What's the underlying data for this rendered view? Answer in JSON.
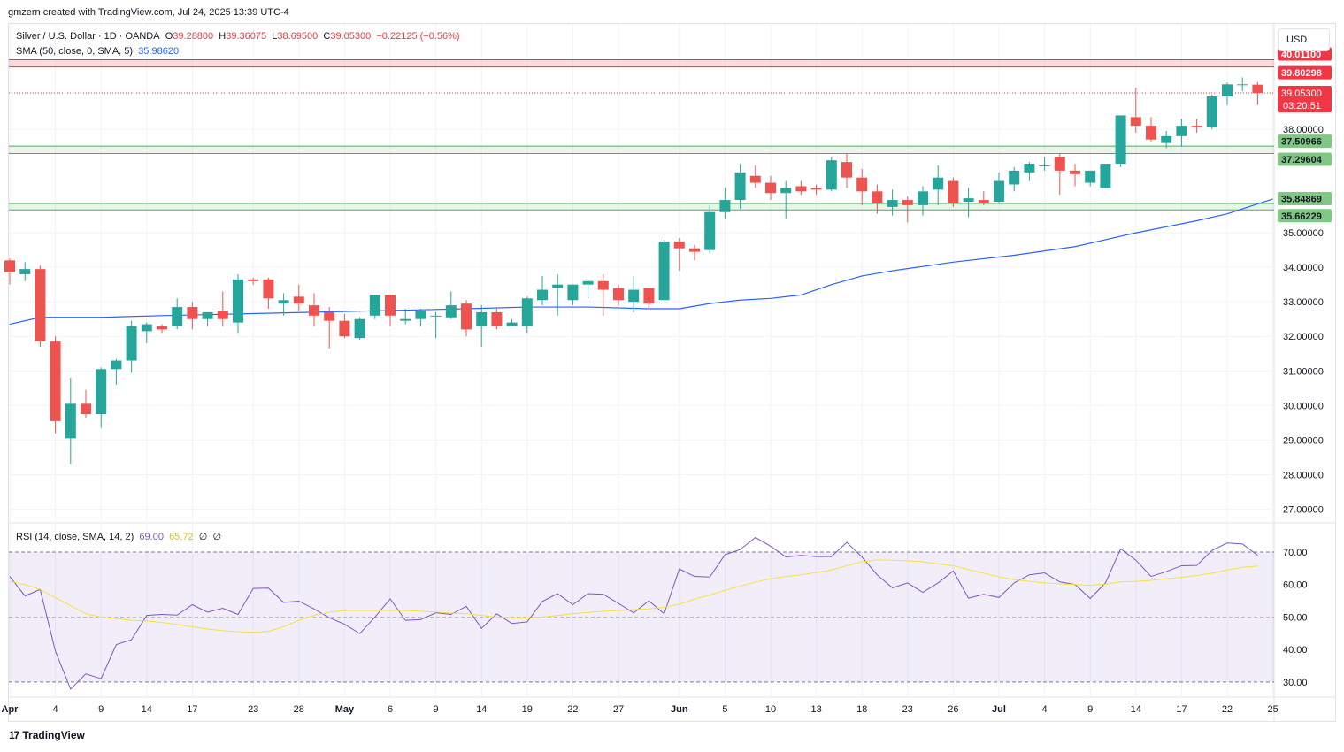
{
  "header": {
    "credit": "gmzern created with TradingView.com, Jul 24, 2025 13:39 UTC-4"
  },
  "legend": {
    "symbol": "Silver / U.S. Dollar · 1D · OANDA",
    "o_label": "O",
    "o_value": "39.28800",
    "h_label": "H",
    "h_value": "39.36075",
    "l_label": "L",
    "l_value": "38.69500",
    "c_label": "C",
    "c_value": "39.05300",
    "change": "−0.22125 (−0.56%)",
    "sma_label": "SMA (50, close, 0, SMA, 5)",
    "sma_value": "35.98620",
    "rsi_label": "RSI (14, close, SMA, 14, 2)",
    "rsi_value": "69.00",
    "rsi_ma_value": "65.72",
    "rsi_extra1": "∅",
    "rsi_extra2": "∅"
  },
  "currency_button": "USD",
  "footer": {
    "logo_mark": "17",
    "logo_text": "TradingView"
  },
  "colors": {
    "up": "#26a69a",
    "down": "#ef5350",
    "sma": "#2962ff",
    "rsi": "#7e57c2",
    "rsi_ma": "#f5e13c",
    "zone_red": "#f23645",
    "zone_green": "#4caf50"
  },
  "chart_data": [
    {
      "type": "candlestick",
      "title": "Silver / U.S. Dollar · 1D · OANDA",
      "ylim": [
        26.6,
        41.05
      ],
      "y_ticks": [
        "27.00000",
        "28.00000",
        "29.00000",
        "30.00000",
        "31.00000",
        "32.00000",
        "33.00000",
        "34.00000",
        "35.00000",
        "38.00000"
      ],
      "x_ticks": [
        {
          "label": "Apr",
          "i": 0
        },
        {
          "label": "4",
          "i": 3
        },
        {
          "label": "9",
          "i": 6
        },
        {
          "label": "14",
          "i": 9
        },
        {
          "label": "17",
          "i": 12
        },
        {
          "label": "23",
          "i": 16
        },
        {
          "label": "28",
          "i": 19
        },
        {
          "label": "May",
          "i": 22
        },
        {
          "label": "6",
          "i": 25
        },
        {
          "label": "9",
          "i": 28
        },
        {
          "label": "14",
          "i": 31
        },
        {
          "label": "19",
          "i": 34
        },
        {
          "label": "22",
          "i": 37
        },
        {
          "label": "27",
          "i": 40
        },
        {
          "label": "Jun",
          "i": 44
        },
        {
          "label": "5",
          "i": 47
        },
        {
          "label": "10",
          "i": 50
        },
        {
          "label": "13",
          "i": 53
        },
        {
          "label": "18",
          "i": 56
        },
        {
          "label": "23",
          "i": 59
        },
        {
          "label": "26",
          "i": 62
        },
        {
          "label": "Jul",
          "i": 65
        },
        {
          "label": "4",
          "i": 68
        },
        {
          "label": "9",
          "i": 71
        },
        {
          "label": "14",
          "i": 74
        },
        {
          "label": "17",
          "i": 77
        },
        {
          "label": "22",
          "i": 80
        },
        {
          "label": "25",
          "i": 83
        }
      ],
      "last_price_label": "39.05300",
      "countdown_label": "03:20:51",
      "zones": [
        {
          "color": "red",
          "top": 40.011,
          "bottom": 39.80298,
          "labels": [
            "40.01100",
            "39.80298"
          ]
        },
        {
          "color": "green",
          "top": 37.50966,
          "bottom": 37.29604,
          "labels": [
            "37.50966",
            "37.29604"
          ]
        },
        {
          "color": "green",
          "top": 35.84869,
          "bottom": 35.66229,
          "labels": [
            "35.84869",
            "35.66229"
          ]
        }
      ],
      "candles": [
        [
          34.2,
          34.25,
          33.5,
          33.85
        ],
        [
          33.8,
          34.15,
          33.6,
          33.95
        ],
        [
          33.95,
          34.05,
          31.7,
          31.85
        ],
        [
          31.85,
          32.0,
          29.2,
          29.55
        ],
        [
          29.05,
          30.8,
          28.3,
          30.05
        ],
        [
          30.05,
          30.45,
          29.65,
          29.75
        ],
        [
          29.75,
          31.1,
          29.35,
          31.05
        ],
        [
          31.05,
          31.35,
          30.6,
          31.3
        ],
        [
          31.3,
          32.45,
          30.95,
          32.3
        ],
        [
          32.15,
          32.4,
          31.8,
          32.35
        ],
        [
          32.3,
          32.35,
          32.1,
          32.2
        ],
        [
          32.3,
          33.1,
          32.2,
          32.85
        ],
        [
          32.85,
          33.0,
          32.2,
          32.5
        ],
        [
          32.5,
          32.7,
          32.3,
          32.7
        ],
        [
          32.75,
          33.3,
          32.3,
          32.5
        ],
        [
          32.4,
          33.8,
          32.1,
          33.65
        ],
        [
          33.65,
          33.7,
          33.5,
          33.6
        ],
        [
          33.65,
          33.7,
          32.8,
          33.1
        ],
        [
          32.95,
          33.25,
          32.6,
          33.05
        ],
        [
          33.15,
          33.5,
          32.75,
          32.95
        ],
        [
          32.9,
          33.25,
          32.3,
          32.6
        ],
        [
          32.7,
          32.85,
          31.65,
          32.45
        ],
        [
          32.45,
          32.65,
          31.95,
          32.0
        ],
        [
          31.95,
          32.55,
          31.9,
          32.5
        ],
        [
          32.6,
          33.2,
          32.5,
          33.2
        ],
        [
          33.2,
          33.2,
          32.3,
          32.6
        ],
        [
          32.45,
          32.8,
          32.35,
          32.5
        ],
        [
          32.5,
          32.8,
          32.3,
          32.75
        ],
        [
          32.6,
          32.7,
          31.95,
          32.6
        ],
        [
          32.55,
          33.3,
          32.5,
          32.9
        ],
        [
          32.95,
          33.05,
          32.0,
          32.2
        ],
        [
          32.3,
          32.9,
          31.7,
          32.7
        ],
        [
          32.7,
          32.8,
          32.2,
          32.3
        ],
        [
          32.3,
          32.5,
          32.3,
          32.4
        ],
        [
          32.3,
          33.15,
          32.1,
          33.1
        ],
        [
          33.05,
          33.75,
          32.9,
          33.35
        ],
        [
          33.4,
          33.8,
          32.6,
          33.5
        ],
        [
          33.05,
          33.5,
          32.9,
          33.5
        ],
        [
          33.5,
          33.6,
          33.1,
          33.6
        ],
        [
          33.6,
          33.8,
          32.6,
          33.35
        ],
        [
          33.4,
          33.5,
          32.9,
          33.05
        ],
        [
          33.0,
          33.75,
          32.7,
          33.35
        ],
        [
          33.4,
          33.4,
          32.8,
          32.95
        ],
        [
          33.05,
          34.8,
          33.0,
          34.75
        ],
        [
          34.75,
          34.85,
          33.9,
          34.55
        ],
        [
          34.55,
          34.65,
          34.2,
          34.45
        ],
        [
          34.5,
          35.8,
          34.4,
          35.6
        ],
        [
          35.6,
          36.3,
          35.4,
          35.95
        ],
        [
          35.95,
          37.0,
          35.7,
          36.75
        ],
        [
          36.65,
          36.95,
          36.3,
          36.45
        ],
        [
          36.45,
          36.65,
          35.95,
          36.15
        ],
        [
          36.15,
          36.5,
          35.4,
          36.3
        ],
        [
          36.35,
          36.5,
          36.1,
          36.2
        ],
        [
          36.3,
          36.4,
          36.1,
          36.25
        ],
        [
          36.25,
          37.2,
          36.2,
          37.1
        ],
        [
          37.05,
          37.3,
          36.3,
          36.6
        ],
        [
          36.6,
          36.85,
          35.8,
          36.2
        ],
        [
          36.2,
          36.4,
          35.55,
          35.85
        ],
        [
          35.75,
          36.25,
          35.5,
          35.95
        ],
        [
          35.95,
          36.05,
          35.3,
          35.8
        ],
        [
          35.8,
          36.35,
          35.5,
          36.2
        ],
        [
          36.25,
          36.95,
          35.8,
          36.6
        ],
        [
          36.5,
          36.6,
          35.75,
          35.85
        ],
        [
          35.9,
          36.3,
          35.45,
          36.0
        ],
        [
          35.95,
          36.2,
          35.8,
          35.85
        ],
        [
          35.9,
          36.75,
          35.85,
          36.5
        ],
        [
          36.4,
          36.9,
          36.2,
          36.8
        ],
        [
          36.75,
          37.05,
          36.5,
          37.0
        ],
        [
          36.95,
          37.2,
          36.8,
          36.95
        ],
        [
          37.2,
          37.3,
          36.1,
          36.8
        ],
        [
          36.8,
          37.0,
          36.35,
          36.7
        ],
        [
          36.45,
          36.8,
          36.35,
          36.8
        ],
        [
          36.3,
          37.0,
          36.3,
          37.0
        ],
        [
          37.0,
          38.3,
          36.9,
          38.4
        ],
        [
          38.35,
          39.2,
          37.9,
          38.1
        ],
        [
          38.1,
          38.35,
          37.65,
          37.7
        ],
        [
          37.6,
          37.95,
          37.45,
          37.8
        ],
        [
          37.8,
          38.3,
          37.5,
          38.1
        ],
        [
          38.1,
          38.3,
          37.9,
          38.05
        ],
        [
          38.05,
          39.0,
          38.0,
          38.95
        ],
        [
          38.95,
          39.35,
          38.7,
          39.3
        ],
        [
          39.3,
          39.5,
          39.1,
          39.3
        ],
        [
          39.29,
          39.36,
          38.7,
          39.05
        ]
      ],
      "sma": [
        [
          0,
          32.35
        ],
        [
          2,
          32.55
        ],
        [
          6,
          32.55
        ],
        [
          10,
          32.6
        ],
        [
          15,
          32.65
        ],
        [
          20,
          32.7
        ],
        [
          25,
          32.75
        ],
        [
          30,
          32.8
        ],
        [
          34,
          32.85
        ],
        [
          38,
          32.85
        ],
        [
          42,
          32.8
        ],
        [
          44,
          32.8
        ],
        [
          46,
          32.95
        ],
        [
          48,
          33.05
        ],
        [
          50,
          33.1
        ],
        [
          52,
          33.2
        ],
        [
          54,
          33.5
        ],
        [
          56,
          33.75
        ],
        [
          58,
          33.9
        ],
        [
          62,
          34.15
        ],
        [
          66,
          34.35
        ],
        [
          70,
          34.6
        ],
        [
          72,
          34.8
        ],
        [
          74,
          35.0
        ],
        [
          78,
          35.35
        ],
        [
          80,
          35.55
        ],
        [
          83,
          35.98
        ]
      ],
      "y_ticks_hidden_note": ""
    },
    {
      "type": "line",
      "title": "RSI (14, close, SMA, 14, 2)",
      "ylim": [
        25.6,
        79.0
      ],
      "y_ticks": [
        "30.00",
        "40.00",
        "50.00",
        "60.00",
        "70.00"
      ],
      "band": [
        30,
        70
      ],
      "mid": 50,
      "series": [
        {
          "name": "RSI",
          "values": [
            62.5,
            56.5,
            58.5,
            39.5,
            27.8,
            32.5,
            31.0,
            41.5,
            43.0,
            50.5,
            50.8,
            50.6,
            53.8,
            51.5,
            52.7,
            50.8,
            58.8,
            58.9,
            54.5,
            54.9,
            52.5,
            49.8,
            47.8,
            44.9,
            50.0,
            55.6,
            49.0,
            49.2,
            51.3,
            50.8,
            53.3,
            46.5,
            51.0,
            48.0,
            48.5,
            54.8,
            57.2,
            53.8,
            57.2,
            57.0,
            54.2,
            51.3,
            55.0,
            51.0,
            64.8,
            62.5,
            62.3,
            69.2,
            70.8,
            74.5,
            71.8,
            68.5,
            69.0,
            68.6,
            68.6,
            73.0,
            68.5,
            63.0,
            59.0,
            60.5,
            57.6,
            60.5,
            64.2,
            55.8,
            57.0,
            56.0,
            60.5,
            63.0,
            63.6,
            60.8,
            60.0,
            55.7,
            60.5,
            71.0,
            67.5,
            62.5,
            64.0,
            65.8,
            65.9,
            70.5,
            72.8,
            72.5,
            69.0
          ]
        },
        {
          "name": "RSI MA",
          "values": [
            61.0,
            60.0,
            58.5,
            56.0,
            53.5,
            51.0,
            50.0,
            49.5,
            49.0,
            48.8,
            48.3,
            47.7,
            47.0,
            46.3,
            45.8,
            45.5,
            45.3,
            45.6,
            47.0,
            49.0,
            50.5,
            51.5,
            52.0,
            52.0,
            52.0,
            52.0,
            52.0,
            51.8,
            51.5,
            51.2,
            51.0,
            50.5,
            50.0,
            49.8,
            49.7,
            50.0,
            50.5,
            51.0,
            51.4,
            51.8,
            52.0,
            52.3,
            52.5,
            53.0,
            54.0,
            55.5,
            56.8,
            58.2,
            59.5,
            60.8,
            61.8,
            62.5,
            63.0,
            63.7,
            64.5,
            65.8,
            67.0,
            67.6,
            67.5,
            67.3,
            67.0,
            66.4,
            65.8,
            64.6,
            63.5,
            62.4,
            61.5,
            61.0,
            60.5,
            60.2,
            60.0,
            59.8,
            60.1,
            60.8,
            61.0,
            61.3,
            61.8,
            62.2,
            62.8,
            63.5,
            64.5,
            65.3,
            65.72
          ]
        }
      ]
    }
  ]
}
